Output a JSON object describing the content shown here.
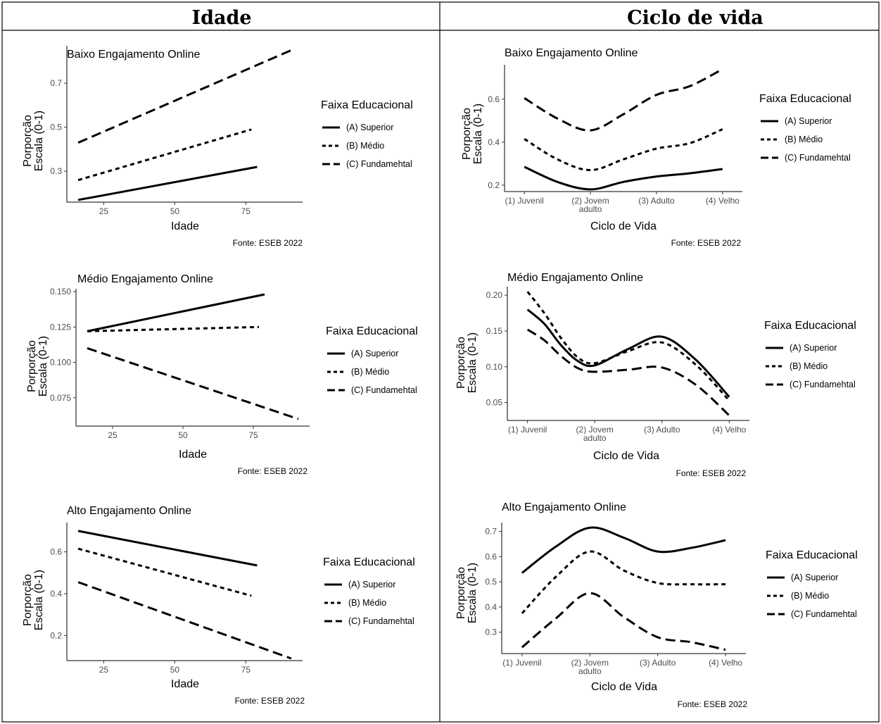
{
  "headers": {
    "left": "Idade",
    "right": "Ciclo de vida"
  },
  "legend": {
    "title": "Faixa Educacional",
    "items": [
      {
        "label": "(A) Superior",
        "style": "solid"
      },
      {
        "label": "(B) Médio",
        "style": "dotted"
      },
      {
        "label": "(C) Fundamehtal",
        "style": "dashed"
      }
    ]
  },
  "caption": "Fonte: ESEB 2022",
  "ylabel_line1": "Porporção",
  "ylabel_line2": "Escala (0-1)",
  "chart_data": [
    {
      "type": "line",
      "title": "Baixo Engajamento Online",
      "xlabel": "Idade",
      "ylabel": "Porporção Escala (0-1)",
      "xlim": [
        12,
        95
      ],
      "ylim": [
        0.16,
        0.87
      ],
      "xticks": [
        25,
        50,
        75
      ],
      "yticks": [
        0.3,
        0.5,
        0.7
      ],
      "series": [
        {
          "name": "(A) Superior",
          "x": [
            16,
            79
          ],
          "y": [
            0.17,
            0.32
          ]
        },
        {
          "name": "(B) Médio",
          "x": [
            16,
            77
          ],
          "y": [
            0.26,
            0.49
          ]
        },
        {
          "name": "(C) Fundamehtal",
          "x": [
            16,
            91
          ],
          "y": [
            0.43,
            0.85
          ]
        }
      ]
    },
    {
      "type": "line",
      "title": "Médio Engajamento Online",
      "xlabel": "Idade",
      "ylabel": "Porporção Escala (0-1)",
      "xlim": [
        12,
        95
      ],
      "ylim": [
        0.055,
        0.152
      ],
      "xticks": [
        25,
        50,
        75
      ],
      "yticks": [
        0.075,
        0.1,
        0.125,
        0.15
      ],
      "series": [
        {
          "name": "(A) Superior",
          "x": [
            16,
            79
          ],
          "y": [
            0.122,
            0.148
          ]
        },
        {
          "name": "(B) Médio",
          "x": [
            16,
            77
          ],
          "y": [
            0.122,
            0.125
          ]
        },
        {
          "name": "(C) Fundamehtal",
          "x": [
            16,
            91
          ],
          "y": [
            0.11,
            0.06
          ]
        }
      ]
    },
    {
      "type": "line",
      "title": "Alto Engajamento Online",
      "xlabel": "Idade",
      "ylabel": "Porporção Escala (0-1)",
      "xlim": [
        12,
        95
      ],
      "ylim": [
        0.08,
        0.74
      ],
      "xticks": [
        25,
        50,
        75
      ],
      "yticks": [
        0.2,
        0.4,
        0.6
      ],
      "series": [
        {
          "name": "(A) Superior",
          "x": [
            16,
            79
          ],
          "y": [
            0.7,
            0.535
          ]
        },
        {
          "name": "(B) Médio",
          "x": [
            16,
            77
          ],
          "y": [
            0.615,
            0.39
          ]
        },
        {
          "name": "(C) Fundamehtal",
          "x": [
            16,
            91
          ],
          "y": [
            0.455,
            0.09
          ]
        }
      ]
    },
    {
      "type": "line",
      "title": "Baixo Engajamento Online",
      "xlabel": "Ciclo de Vida",
      "ylabel": "Porporção Escala (0-1)",
      "xlim": [
        0.7,
        4.3
      ],
      "ylim": [
        0.17,
        0.76
      ],
      "categories": [
        "(1) Juvenil",
        "(2) Jovem\nadulto",
        "(3) Adulto",
        "(4) Velho"
      ],
      "yticks": [
        0.2,
        0.4,
        0.6
      ],
      "series": [
        {
          "name": "(A) Superior",
          "x": [
            1,
            1.5,
            2,
            2.5,
            3,
            3.5,
            4
          ],
          "y": [
            0.285,
            0.215,
            0.18,
            0.215,
            0.24,
            0.255,
            0.275
          ]
        },
        {
          "name": "(B) Médio",
          "x": [
            1,
            1.5,
            2,
            2.5,
            3,
            3.5,
            4
          ],
          "y": [
            0.415,
            0.32,
            0.27,
            0.32,
            0.37,
            0.395,
            0.46
          ]
        },
        {
          "name": "(C) Fundamehtal",
          "x": [
            1,
            1.5,
            2,
            2.5,
            3,
            3.5,
            4
          ],
          "y": [
            0.605,
            0.51,
            0.455,
            0.53,
            0.62,
            0.66,
            0.74
          ]
        }
      ]
    },
    {
      "type": "line",
      "title": "Médio Engajamento Online",
      "xlabel": "Ciclo de Vida",
      "ylabel": "Porporção Escala (0-1)",
      "xlim": [
        0.7,
        4.3
      ],
      "ylim": [
        0.025,
        0.212
      ],
      "categories": [
        "(1) Juvenil",
        "(2) Jovem\nadulto",
        "(3) Adulto",
        "(4) Velho"
      ],
      "yticks": [
        0.05,
        0.1,
        0.15,
        0.2
      ],
      "series": [
        {
          "name": "(A) Superior",
          "x": [
            1,
            1.25,
            1.5,
            1.75,
            2,
            2.5,
            3,
            3.5,
            4
          ],
          "y": [
            0.18,
            0.16,
            0.13,
            0.108,
            0.102,
            0.125,
            0.142,
            0.11,
            0.058
          ]
        },
        {
          "name": "(B) Médio",
          "x": [
            1,
            1.25,
            1.5,
            1.75,
            2,
            2.5,
            3,
            3.5,
            4
          ],
          "y": [
            0.205,
            0.175,
            0.14,
            0.113,
            0.105,
            0.122,
            0.134,
            0.103,
            0.053
          ]
        },
        {
          "name": "(C) Fundamehtal",
          "x": [
            1,
            1.25,
            1.5,
            1.75,
            2,
            2.5,
            3,
            3.5,
            4
          ],
          "y": [
            0.152,
            0.137,
            0.115,
            0.098,
            0.093,
            0.096,
            0.099,
            0.075,
            0.032
          ]
        }
      ]
    },
    {
      "type": "line",
      "title": "Alto Engajamento Online",
      "xlabel": "Ciclo de Vida",
      "ylabel": "Porporção Escala (0-1)",
      "xlim": [
        0.7,
        4.3
      ],
      "ylim": [
        0.215,
        0.735
      ],
      "categories": [
        "(1) Juvenil",
        "(2) Jovem\nadulto",
        "(3) Adulto",
        "(4) Velho"
      ],
      "yticks": [
        0.3,
        0.4,
        0.5,
        0.6,
        0.7
      ],
      "series": [
        {
          "name": "(A) Superior",
          "x": [
            1,
            1.5,
            2,
            2.5,
            3,
            3.5,
            4
          ],
          "y": [
            0.535,
            0.64,
            0.715,
            0.675,
            0.62,
            0.635,
            0.665
          ]
        },
        {
          "name": "(B) Médio",
          "x": [
            1,
            1.5,
            2,
            2.5,
            3,
            3.5,
            4
          ],
          "y": [
            0.375,
            0.52,
            0.62,
            0.545,
            0.495,
            0.49,
            0.49
          ]
        },
        {
          "name": "(C) Fundamehtal",
          "x": [
            1,
            1.5,
            2,
            2.5,
            3,
            3.5,
            4
          ],
          "y": [
            0.24,
            0.355,
            0.455,
            0.36,
            0.28,
            0.26,
            0.23
          ]
        }
      ]
    }
  ]
}
